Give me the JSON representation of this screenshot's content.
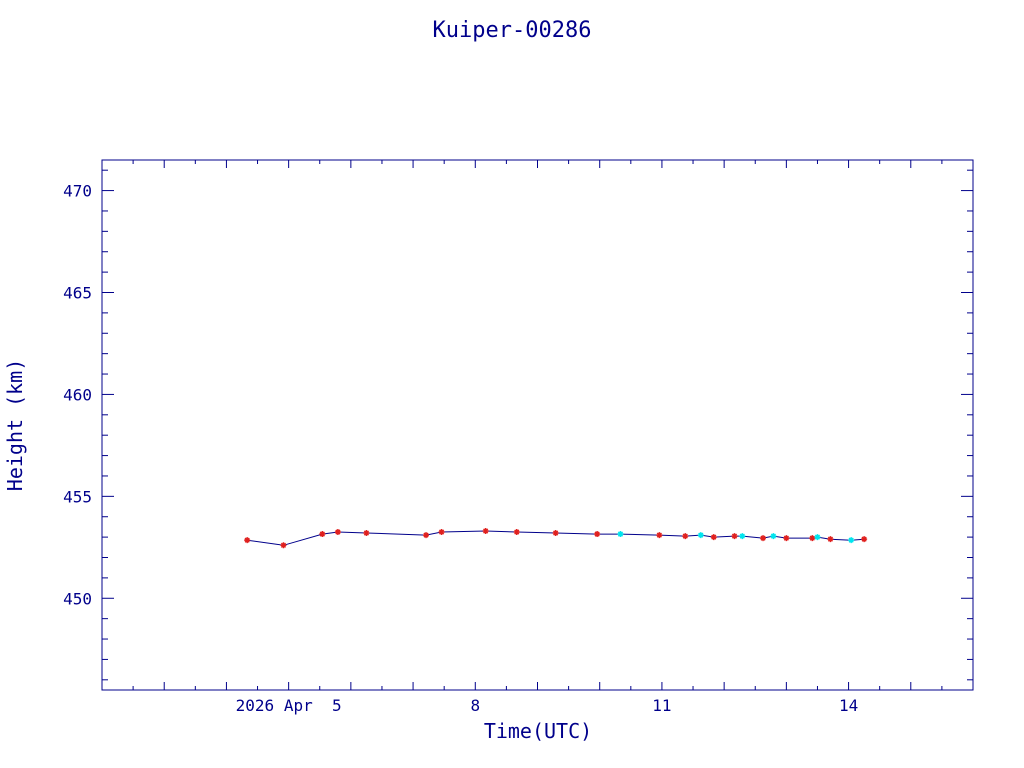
{
  "chart_data": {
    "type": "line",
    "title": "Kuiper-00286",
    "xlabel": "Time(UTC)",
    "ylabel": "Height (km)",
    "xlim": [
      "2026-04-02T00:00",
      "2026-04-16T00:00"
    ],
    "ylim": [
      445.5,
      471.5
    ],
    "x_ticks": [
      {
        "label": "2026 Apr  5",
        "value": "2026-04-05T00:00"
      },
      {
        "label": "8",
        "value": "2026-04-08T00:00"
      },
      {
        "label": "11",
        "value": "2026-04-11T00:00"
      },
      {
        "label": "14",
        "value": "2026-04-14T00:00"
      }
    ],
    "y_ticks": [
      450,
      455,
      460,
      465,
      470
    ],
    "grid": false,
    "colors": {
      "axes": "#00008b",
      "line": "#00008b",
      "red_marker": "#e0201e",
      "cyan_marker": "#00e5ee"
    },
    "series": [
      {
        "marker": "red-asterisk",
        "x": [
          "2026-04-04T08:00",
          "2026-04-04T22:00",
          "2026-04-05T13:00",
          "2026-04-05T19:00",
          "2026-04-06T06:00",
          "2026-04-07T05:00",
          "2026-04-07T11:00",
          "2026-04-08T04:00",
          "2026-04-08T16:00",
          "2026-04-09T07:00",
          "2026-04-09T23:00",
          "2026-04-10T23:00",
          "2026-04-11T09:00",
          "2026-04-11T20:00",
          "2026-04-12T04:00",
          "2026-04-12T15:00",
          "2026-04-13T00:00",
          "2026-04-13T10:00",
          "2026-04-13T17:00",
          "2026-04-14T06:00"
        ],
        "y": [
          452.85,
          452.6,
          453.15,
          453.25,
          453.2,
          453.1,
          453.25,
          453.3,
          453.25,
          453.2,
          453.15,
          453.1,
          453.05,
          453.0,
          453.05,
          452.95,
          452.95,
          452.95,
          452.9,
          452.9
        ]
      },
      {
        "marker": "cyan-asterisk",
        "x": [
          "2026-04-10T08:00",
          "2026-04-11T15:00",
          "2026-04-12T07:00",
          "2026-04-12T19:00",
          "2026-04-13T12:00",
          "2026-04-14T01:00"
        ],
        "y": [
          453.15,
          453.1,
          453.05,
          453.05,
          453.0,
          452.85
        ]
      }
    ]
  }
}
